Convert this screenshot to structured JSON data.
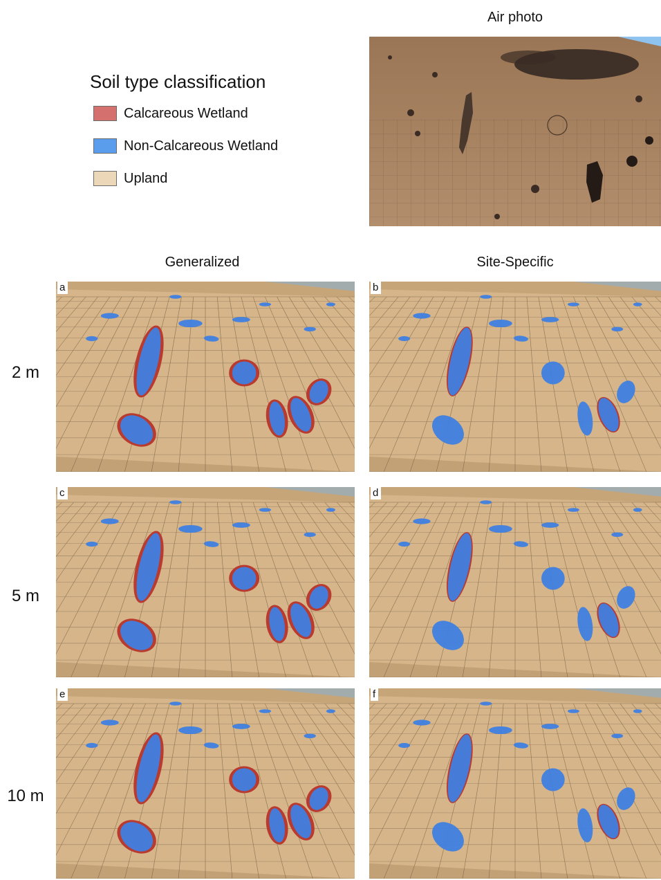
{
  "legend": {
    "title": "Soil type classification",
    "items": [
      {
        "label": "Calcareous Wetland",
        "color": "#d4716f"
      },
      {
        "label": "Non-Calcareous Wetland",
        "color": "#5b9ded"
      },
      {
        "label": "Upland",
        "color": "#ecd8b8"
      }
    ]
  },
  "air_photo": {
    "title": "Air photo"
  },
  "columns": [
    {
      "title": "Generalized"
    },
    {
      "title": "Site-Specific"
    }
  ],
  "rows": [
    {
      "label": "2 m"
    },
    {
      "label": "5 m"
    },
    {
      "label": "10 m"
    }
  ],
  "panels": [
    {
      "letter": "a"
    },
    {
      "letter": "b"
    },
    {
      "letter": "c"
    },
    {
      "letter": "d"
    },
    {
      "letter": "e"
    },
    {
      "letter": "f"
    }
  ],
  "colors": {
    "sky": "#8ec2ef",
    "terrain": "#d5b589",
    "terrain_dark": "#b8956a",
    "grid": "#5c4a34",
    "wet_blue": "#3f7fe0",
    "wet_red": "#b93a2f",
    "photo": "#a88461",
    "photo_dark": "#2f2420"
  }
}
